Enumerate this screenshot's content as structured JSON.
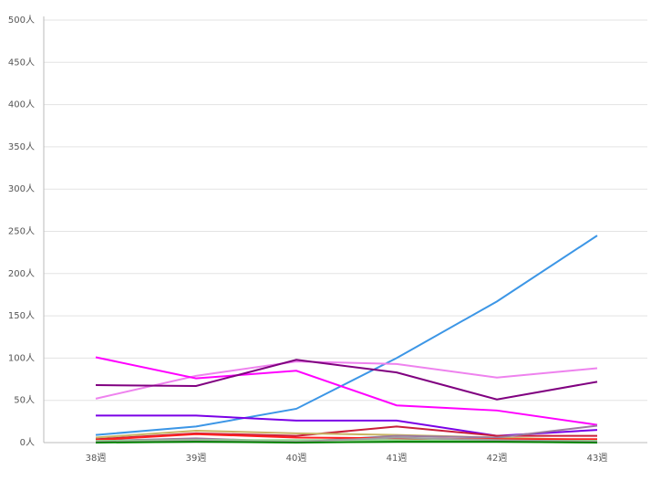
{
  "chart_data": {
    "type": "line",
    "categories": [
      "38週",
      "39週",
      "40週",
      "41週",
      "42週",
      "43週"
    ],
    "ylim": [
      0,
      500
    ],
    "yticks": [
      {
        "value": 0,
        "label": "0人"
      },
      {
        "value": 50,
        "label": "50人"
      },
      {
        "value": 100,
        "label": "100人"
      },
      {
        "value": 150,
        "label": "150人"
      },
      {
        "value": 200,
        "label": "200人"
      },
      {
        "value": 250,
        "label": "250人"
      },
      {
        "value": 300,
        "label": "300人"
      },
      {
        "value": 350,
        "label": "350人"
      },
      {
        "value": 400,
        "label": "400人"
      },
      {
        "value": 450,
        "label": "450人"
      },
      {
        "value": 500,
        "label": "500人"
      }
    ],
    "grid": true,
    "series": [
      {
        "color": "#3c96e6",
        "values": [
          9,
          19,
          40,
          100,
          167,
          245
        ]
      },
      {
        "color": "#ee82ee",
        "values": [
          52,
          79,
          96,
          93,
          77,
          88
        ]
      },
      {
        "color": "#ff00ff",
        "values": [
          101,
          76,
          85,
          44,
          38,
          21
        ]
      },
      {
        "color": "#800080",
        "values": [
          68,
          67,
          98,
          83,
          51,
          72
        ]
      },
      {
        "color": "#7a00e6",
        "values": [
          32,
          32,
          26,
          26,
          8,
          15
        ]
      },
      {
        "color": "#c8203a",
        "values": [
          4,
          11,
          8,
          19,
          8,
          8
        ]
      },
      {
        "color": "#c8b464",
        "values": [
          6,
          14,
          11,
          9,
          6,
          3
        ]
      },
      {
        "color": "#9b7aa0",
        "values": [
          2,
          5,
          1,
          8,
          6,
          20
        ]
      },
      {
        "color": "#ff2020",
        "values": [
          3,
          10,
          6,
          5,
          4,
          4
        ]
      },
      {
        "color": "#90d890",
        "values": [
          2,
          3,
          3,
          3,
          2,
          2
        ]
      },
      {
        "color": "#a0a0a0",
        "values": [
          1,
          2,
          1,
          6,
          3,
          1
        ]
      },
      {
        "color": "#008000",
        "values": [
          0,
          1,
          0,
          1,
          1,
          0
        ]
      }
    ]
  }
}
